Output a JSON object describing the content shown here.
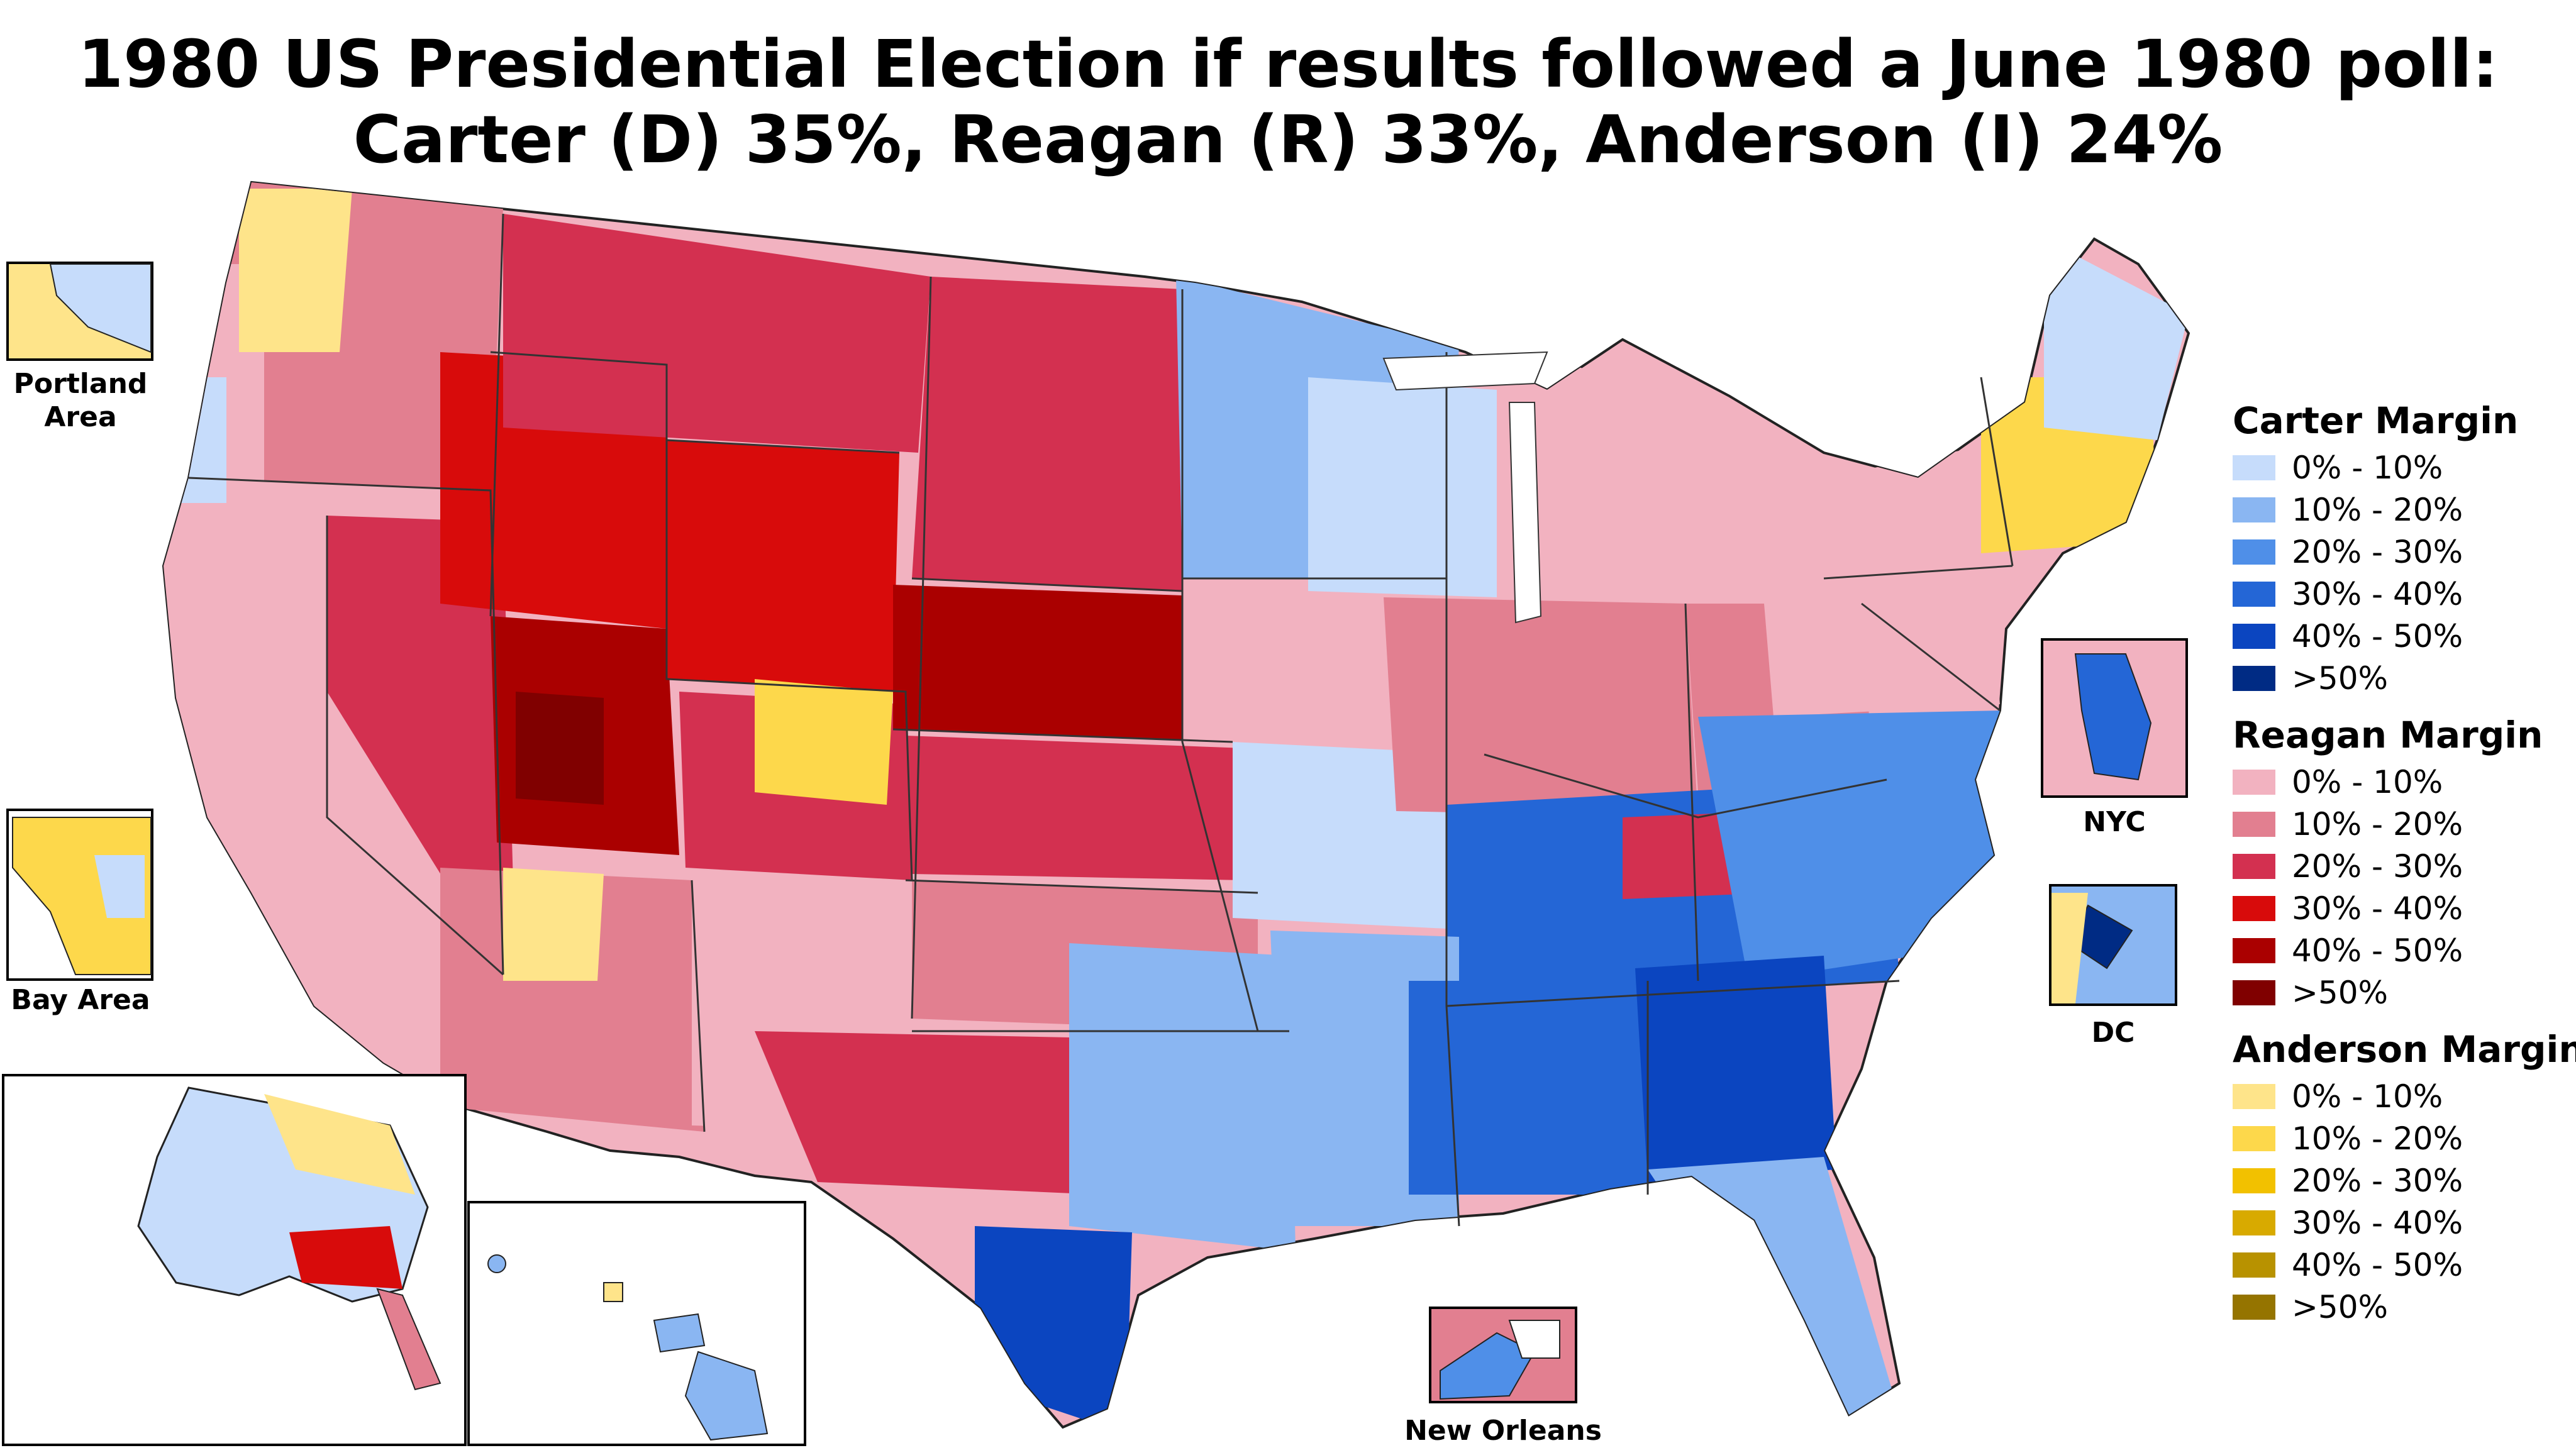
{
  "title_line1": "1980 US Presidential Election if results followed a June 1980 poll:",
  "title_line2": "Carter (D) 35%, Reagan (R) 33%, Anderson (I) 24%",
  "insets": {
    "portland": "Portland Area",
    "bay": "Bay Area",
    "nyc": "NYC",
    "dc": "DC",
    "new_orleans": "New Orleans"
  },
  "legend": [
    {
      "title": "Carter Margin",
      "items": [
        {
          "label": "0% - 10%",
          "color": "#c6dcfb"
        },
        {
          "label": "10% - 20%",
          "color": "#8ab6f2"
        },
        {
          "label": "20% - 30%",
          "color": "#4f8fe8"
        },
        {
          "label": "30% - 40%",
          "color": "#2466d6"
        },
        {
          "label": "40% - 50%",
          "color": "#0b45c0"
        },
        {
          "label": ">50%",
          "color": "#002b84"
        }
      ]
    },
    {
      "title": "Reagan Margin",
      "items": [
        {
          "label": "0% - 10%",
          "color": "#f2b2c0"
        },
        {
          "label": "10% - 20%",
          "color": "#e27f90"
        },
        {
          "label": "20% - 30%",
          "color": "#d33050"
        },
        {
          "label": "30% - 40%",
          "color": "#d80b0b"
        },
        {
          "label": "40% - 50%",
          "color": "#aa0000"
        },
        {
          "label": ">50%",
          "color": "#800000"
        }
      ]
    },
    {
      "title": "Anderson Margin",
      "items": [
        {
          "label": "0% - 10%",
          "color": "#fee48a"
        },
        {
          "label": "10% - 20%",
          "color": "#fdd84b"
        },
        {
          "label": "20% - 30%",
          "color": "#f2c100"
        },
        {
          "label": "30% - 40%",
          "color": "#d8aa00"
        },
        {
          "label": "40% - 50%",
          "color": "#b89200"
        },
        {
          "label": ">50%",
          "color": "#957400"
        }
      ]
    }
  ]
}
